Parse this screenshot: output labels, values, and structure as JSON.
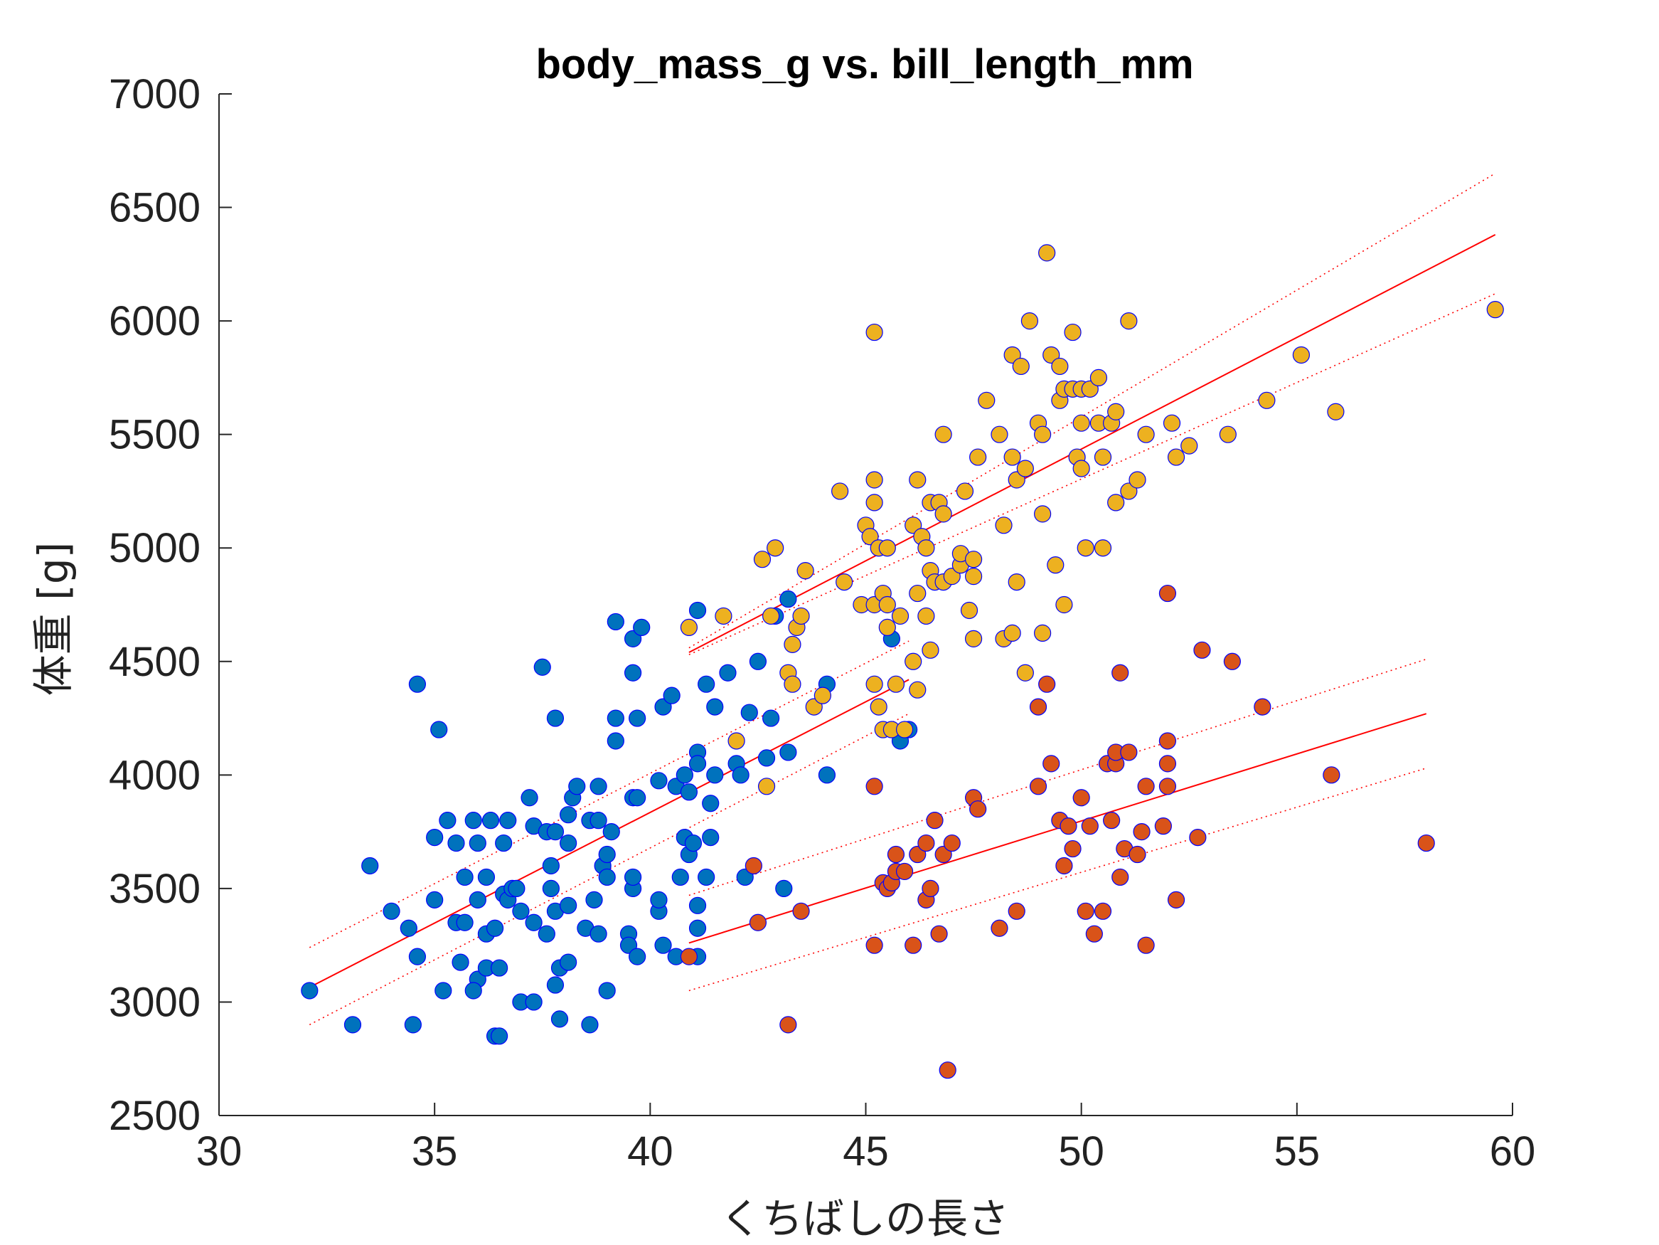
{
  "chart_data": {
    "type": "scatter",
    "title": "body_mass_g vs. bill_length_mm",
    "xlabel": "くちばしの長さ",
    "ylabel": "体重 [g]",
    "xlim": [
      30,
      60
    ],
    "ylim": [
      2500,
      7000
    ],
    "xticks": [
      30,
      35,
      40,
      45,
      50,
      55,
      60
    ],
    "yticks": [
      2500,
      3000,
      3500,
      4000,
      4500,
      5000,
      5500,
      6000,
      6500,
      7000
    ],
    "grid": false,
    "marker_edge_color": "#0000ff",
    "fit_line_color": "#ff0000",
    "series": [
      {
        "color": "#0072bd",
        "points": [
          [
            32.1,
            3050
          ],
          [
            33.1,
            2900
          ],
          [
            33.5,
            3600
          ],
          [
            34.0,
            3400
          ],
          [
            34.4,
            3325
          ],
          [
            34.5,
            2900
          ],
          [
            34.6,
            3200
          ],
          [
            34.6,
            4400
          ],
          [
            35.0,
            3450
          ],
          [
            35.0,
            3725
          ],
          [
            35.1,
            4200
          ],
          [
            35.2,
            3050
          ],
          [
            35.3,
            3800
          ],
          [
            35.5,
            3700
          ],
          [
            35.5,
            3350
          ],
          [
            35.6,
            3175
          ],
          [
            35.7,
            3350
          ],
          [
            35.7,
            3550
          ],
          [
            35.9,
            3800
          ],
          [
            36.0,
            3450
          ],
          [
            36.0,
            3100
          ],
          [
            35.9,
            3050
          ],
          [
            36.0,
            3700
          ],
          [
            36.2,
            3150
          ],
          [
            36.2,
            3300
          ],
          [
            36.2,
            3550
          ],
          [
            36.3,
            3800
          ],
          [
            36.4,
            2850
          ],
          [
            36.4,
            3325
          ],
          [
            36.5,
            2850
          ],
          [
            36.5,
            3150
          ],
          [
            36.6,
            3700
          ],
          [
            36.6,
            3475
          ],
          [
            36.7,
            3800
          ],
          [
            36.7,
            3450
          ],
          [
            36.8,
            3500
          ],
          [
            36.9,
            3500
          ],
          [
            37.0,
            3000
          ],
          [
            37.0,
            3400
          ],
          [
            37.2,
            3900
          ],
          [
            37.3,
            3350
          ],
          [
            37.3,
            3775
          ],
          [
            37.3,
            3000
          ],
          [
            37.5,
            4475
          ],
          [
            37.6,
            3750
          ],
          [
            37.6,
            3300
          ],
          [
            37.7,
            3600
          ],
          [
            37.7,
            3500
          ],
          [
            37.8,
            3075
          ],
          [
            37.8,
            3400
          ],
          [
            37.8,
            4250
          ],
          [
            37.8,
            3750
          ],
          [
            37.9,
            2925
          ],
          [
            37.9,
            3150
          ],
          [
            38.1,
            3425
          ],
          [
            38.1,
            3700
          ],
          [
            38.1,
            3825
          ],
          [
            38.1,
            3175
          ],
          [
            38.2,
            3900
          ],
          [
            38.3,
            3950
          ],
          [
            38.5,
            3325
          ],
          [
            38.6,
            3800
          ],
          [
            38.6,
            2900
          ],
          [
            38.7,
            3450
          ],
          [
            38.8,
            3950
          ],
          [
            38.8,
            3300
          ],
          [
            38.8,
            3800
          ],
          [
            38.9,
            3600
          ],
          [
            39.0,
            3550
          ],
          [
            39.0,
            3650
          ],
          [
            39.0,
            3050
          ],
          [
            39.1,
            3750
          ],
          [
            39.2,
            4675
          ],
          [
            39.2,
            4250
          ],
          [
            39.2,
            4150
          ],
          [
            39.5,
            3300
          ],
          [
            39.5,
            3250
          ],
          [
            39.6,
            3500
          ],
          [
            39.6,
            4600
          ],
          [
            39.6,
            3900
          ],
          [
            39.6,
            4450
          ],
          [
            39.6,
            3550
          ],
          [
            39.7,
            3200
          ],
          [
            39.7,
            3900
          ],
          [
            39.7,
            4250
          ],
          [
            39.8,
            4650
          ],
          [
            40.2,
            3400
          ],
          [
            40.2,
            3450
          ],
          [
            40.2,
            3975
          ],
          [
            40.3,
            4300
          ],
          [
            40.3,
            3250
          ],
          [
            40.5,
            4350
          ],
          [
            40.6,
            3950
          ],
          [
            40.6,
            3200
          ],
          [
            40.7,
            3550
          ],
          [
            40.8,
            3725
          ],
          [
            40.8,
            4000
          ],
          [
            40.9,
            3925
          ],
          [
            40.9,
            3650
          ],
          [
            41.0,
            3700
          ],
          [
            41.1,
            4725
          ],
          [
            41.1,
            3325
          ],
          [
            41.1,
            3425
          ],
          [
            41.1,
            3200
          ],
          [
            41.1,
            4100
          ],
          [
            41.1,
            4050
          ],
          [
            41.3,
            3550
          ],
          [
            41.3,
            4400
          ],
          [
            41.4,
            3725
          ],
          [
            41.4,
            3875
          ],
          [
            41.5,
            4300
          ],
          [
            41.5,
            4000
          ],
          [
            41.8,
            4450
          ],
          [
            42.0,
            4050
          ],
          [
            42.1,
            4000
          ],
          [
            42.2,
            3550
          ],
          [
            42.3,
            4275
          ],
          [
            42.5,
            4500
          ],
          [
            42.7,
            4075
          ],
          [
            42.8,
            4250
          ],
          [
            42.9,
            4700
          ],
          [
            43.1,
            3500
          ],
          [
            43.2,
            4775
          ],
          [
            43.2,
            4100
          ],
          [
            44.1,
            4000
          ],
          [
            44.1,
            4400
          ],
          [
            45.6,
            4600
          ],
          [
            45.8,
            4150
          ],
          [
            46.0,
            4200
          ]
        ]
      },
      {
        "color": "#d95319",
        "points": [
          [
            40.9,
            3200
          ],
          [
            42.4,
            3600
          ],
          [
            42.5,
            3350
          ],
          [
            43.2,
            2900
          ],
          [
            43.5,
            3400
          ],
          [
            45.2,
            3250
          ],
          [
            45.2,
            3950
          ],
          [
            45.4,
            3525
          ],
          [
            45.5,
            3500
          ],
          [
            45.6,
            3525
          ],
          [
            45.7,
            3575
          ],
          [
            45.7,
            3650
          ],
          [
            45.9,
            3575
          ],
          [
            46.1,
            3250
          ],
          [
            46.2,
            3650
          ],
          [
            46.4,
            3450
          ],
          [
            46.4,
            3700
          ],
          [
            46.5,
            3500
          ],
          [
            46.6,
            3800
          ],
          [
            46.7,
            3300
          ],
          [
            46.8,
            3650
          ],
          [
            46.9,
            2700
          ],
          [
            47.0,
            3700
          ],
          [
            47.5,
            3900
          ],
          [
            47.6,
            3850
          ],
          [
            48.1,
            3325
          ],
          [
            48.5,
            3400
          ],
          [
            49.0,
            4300
          ],
          [
            49.0,
            3950
          ],
          [
            49.2,
            4400
          ],
          [
            49.3,
            4050
          ],
          [
            49.5,
            3800
          ],
          [
            49.6,
            3600
          ],
          [
            49.7,
            3775
          ],
          [
            49.8,
            3675
          ],
          [
            50.0,
            3900
          ],
          [
            50.1,
            3400
          ],
          [
            50.2,
            3775
          ],
          [
            50.3,
            3300
          ],
          [
            50.5,
            3400
          ],
          [
            50.6,
            4050
          ],
          [
            50.7,
            3800
          ],
          [
            50.8,
            4050
          ],
          [
            50.8,
            4100
          ],
          [
            50.9,
            4450
          ],
          [
            50.9,
            3550
          ],
          [
            51.0,
            3675
          ],
          [
            51.1,
            4100
          ],
          [
            51.3,
            3650
          ],
          [
            51.4,
            3750
          ],
          [
            51.5,
            3950
          ],
          [
            51.5,
            3250
          ],
          [
            51.9,
            3775
          ],
          [
            52.0,
            3950
          ],
          [
            52.0,
            4150
          ],
          [
            52.0,
            4050
          ],
          [
            52.0,
            4800
          ],
          [
            52.2,
            3450
          ],
          [
            52.7,
            3725
          ],
          [
            52.8,
            4550
          ],
          [
            53.5,
            4500
          ],
          [
            54.2,
            4300
          ],
          [
            55.8,
            4000
          ],
          [
            58.0,
            3700
          ]
        ]
      },
      {
        "color": "#edb120",
        "points": [
          [
            40.9,
            4650
          ],
          [
            41.7,
            4700
          ],
          [
            42.0,
            4150
          ],
          [
            42.6,
            4950
          ],
          [
            42.7,
            3950
          ],
          [
            42.8,
            4700
          ],
          [
            42.9,
            5000
          ],
          [
            43.2,
            4450
          ],
          [
            43.3,
            4575
          ],
          [
            43.3,
            4400
          ],
          [
            43.4,
            4650
          ],
          [
            43.5,
            4700
          ],
          [
            43.6,
            4900
          ],
          [
            43.8,
            4300
          ],
          [
            44.0,
            4350
          ],
          [
            44.4,
            5250
          ],
          [
            44.5,
            4850
          ],
          [
            44.9,
            4750
          ],
          [
            45.0,
            5100
          ],
          [
            45.1,
            5050
          ],
          [
            45.2,
            4750
          ],
          [
            45.2,
            4400
          ],
          [
            45.2,
            5300
          ],
          [
            45.2,
            5200
          ],
          [
            45.2,
            5950
          ],
          [
            45.3,
            4300
          ],
          [
            45.3,
            5000
          ],
          [
            45.4,
            4200
          ],
          [
            45.4,
            4800
          ],
          [
            45.5,
            4750
          ],
          [
            45.5,
            4650
          ],
          [
            45.5,
            5000
          ],
          [
            45.6,
            4200
          ],
          [
            45.7,
            4400
          ],
          [
            45.8,
            4700
          ],
          [
            45.9,
            4200
          ],
          [
            46.1,
            5100
          ],
          [
            46.1,
            4500
          ],
          [
            46.2,
            4800
          ],
          [
            46.2,
            4375
          ],
          [
            46.2,
            5300
          ],
          [
            46.3,
            5050
          ],
          [
            46.4,
            5000
          ],
          [
            46.4,
            4700
          ],
          [
            46.5,
            5200
          ],
          [
            46.5,
            4550
          ],
          [
            46.5,
            4900
          ],
          [
            46.6,
            4850
          ],
          [
            46.7,
            5200
          ],
          [
            46.8,
            4850
          ],
          [
            46.8,
            5500
          ],
          [
            46.8,
            5150
          ],
          [
            47.0,
            4875
          ],
          [
            47.2,
            4925
          ],
          [
            47.2,
            4975
          ],
          [
            47.3,
            5250
          ],
          [
            47.4,
            4725
          ],
          [
            47.5,
            4950
          ],
          [
            47.5,
            4875
          ],
          [
            47.5,
            4600
          ],
          [
            47.6,
            5400
          ],
          [
            47.8,
            5650
          ],
          [
            48.1,
            5500
          ],
          [
            48.2,
            4600
          ],
          [
            48.2,
            5100
          ],
          [
            48.4,
            4625
          ],
          [
            48.4,
            5850
          ],
          [
            48.4,
            5400
          ],
          [
            48.5,
            5300
          ],
          [
            48.5,
            4850
          ],
          [
            48.6,
            5800
          ],
          [
            48.7,
            5350
          ],
          [
            48.7,
            4450
          ],
          [
            48.8,
            6000
          ],
          [
            49.0,
            5550
          ],
          [
            49.1,
            5500
          ],
          [
            49.1,
            5150
          ],
          [
            49.1,
            4625
          ],
          [
            49.2,
            6300
          ],
          [
            49.3,
            5850
          ],
          [
            49.4,
            4925
          ],
          [
            49.5,
            5800
          ],
          [
            49.5,
            5650
          ],
          [
            49.6,
            4750
          ],
          [
            49.6,
            5700
          ],
          [
            49.8,
            5700
          ],
          [
            49.8,
            5950
          ],
          [
            49.9,
            5400
          ],
          [
            50.0,
            5700
          ],
          [
            50.0,
            5350
          ],
          [
            50.0,
            5550
          ],
          [
            50.1,
            5000
          ],
          [
            50.2,
            5700
          ],
          [
            50.4,
            5550
          ],
          [
            50.4,
            5750
          ],
          [
            50.5,
            5400
          ],
          [
            50.5,
            5000
          ],
          [
            50.7,
            5550
          ],
          [
            50.8,
            5600
          ],
          [
            50.8,
            5200
          ],
          [
            51.1,
            5250
          ],
          [
            51.1,
            6000
          ],
          [
            51.3,
            5300
          ],
          [
            51.5,
            5500
          ],
          [
            52.1,
            5550
          ],
          [
            52.2,
            5400
          ],
          [
            52.5,
            5450
          ],
          [
            53.4,
            5500
          ],
          [
            54.3,
            5650
          ],
          [
            55.1,
            5850
          ],
          [
            55.9,
            5600
          ],
          [
            59.6,
            6050
          ]
        ]
      }
    ],
    "fits": [
      {
        "series": 0,
        "x": [
          32.1,
          46.0
        ],
        "fit": [
          3065,
          4420
        ],
        "lower": [
          2900,
          4270
        ],
        "upper": [
          3240,
          4590
        ]
      },
      {
        "series": 1,
        "x": [
          40.9,
          58.0
        ],
        "fit": [
          3260,
          4270
        ],
        "lower": [
          3050,
          4030
        ],
        "upper": [
          3470,
          4510
        ]
      },
      {
        "series": 2,
        "x": [
          40.9,
          59.6
        ],
        "fit": [
          4540,
          6380
        ],
        "lower": [
          4530,
          6120
        ],
        "upper": [
          4560,
          6650
        ]
      }
    ]
  }
}
